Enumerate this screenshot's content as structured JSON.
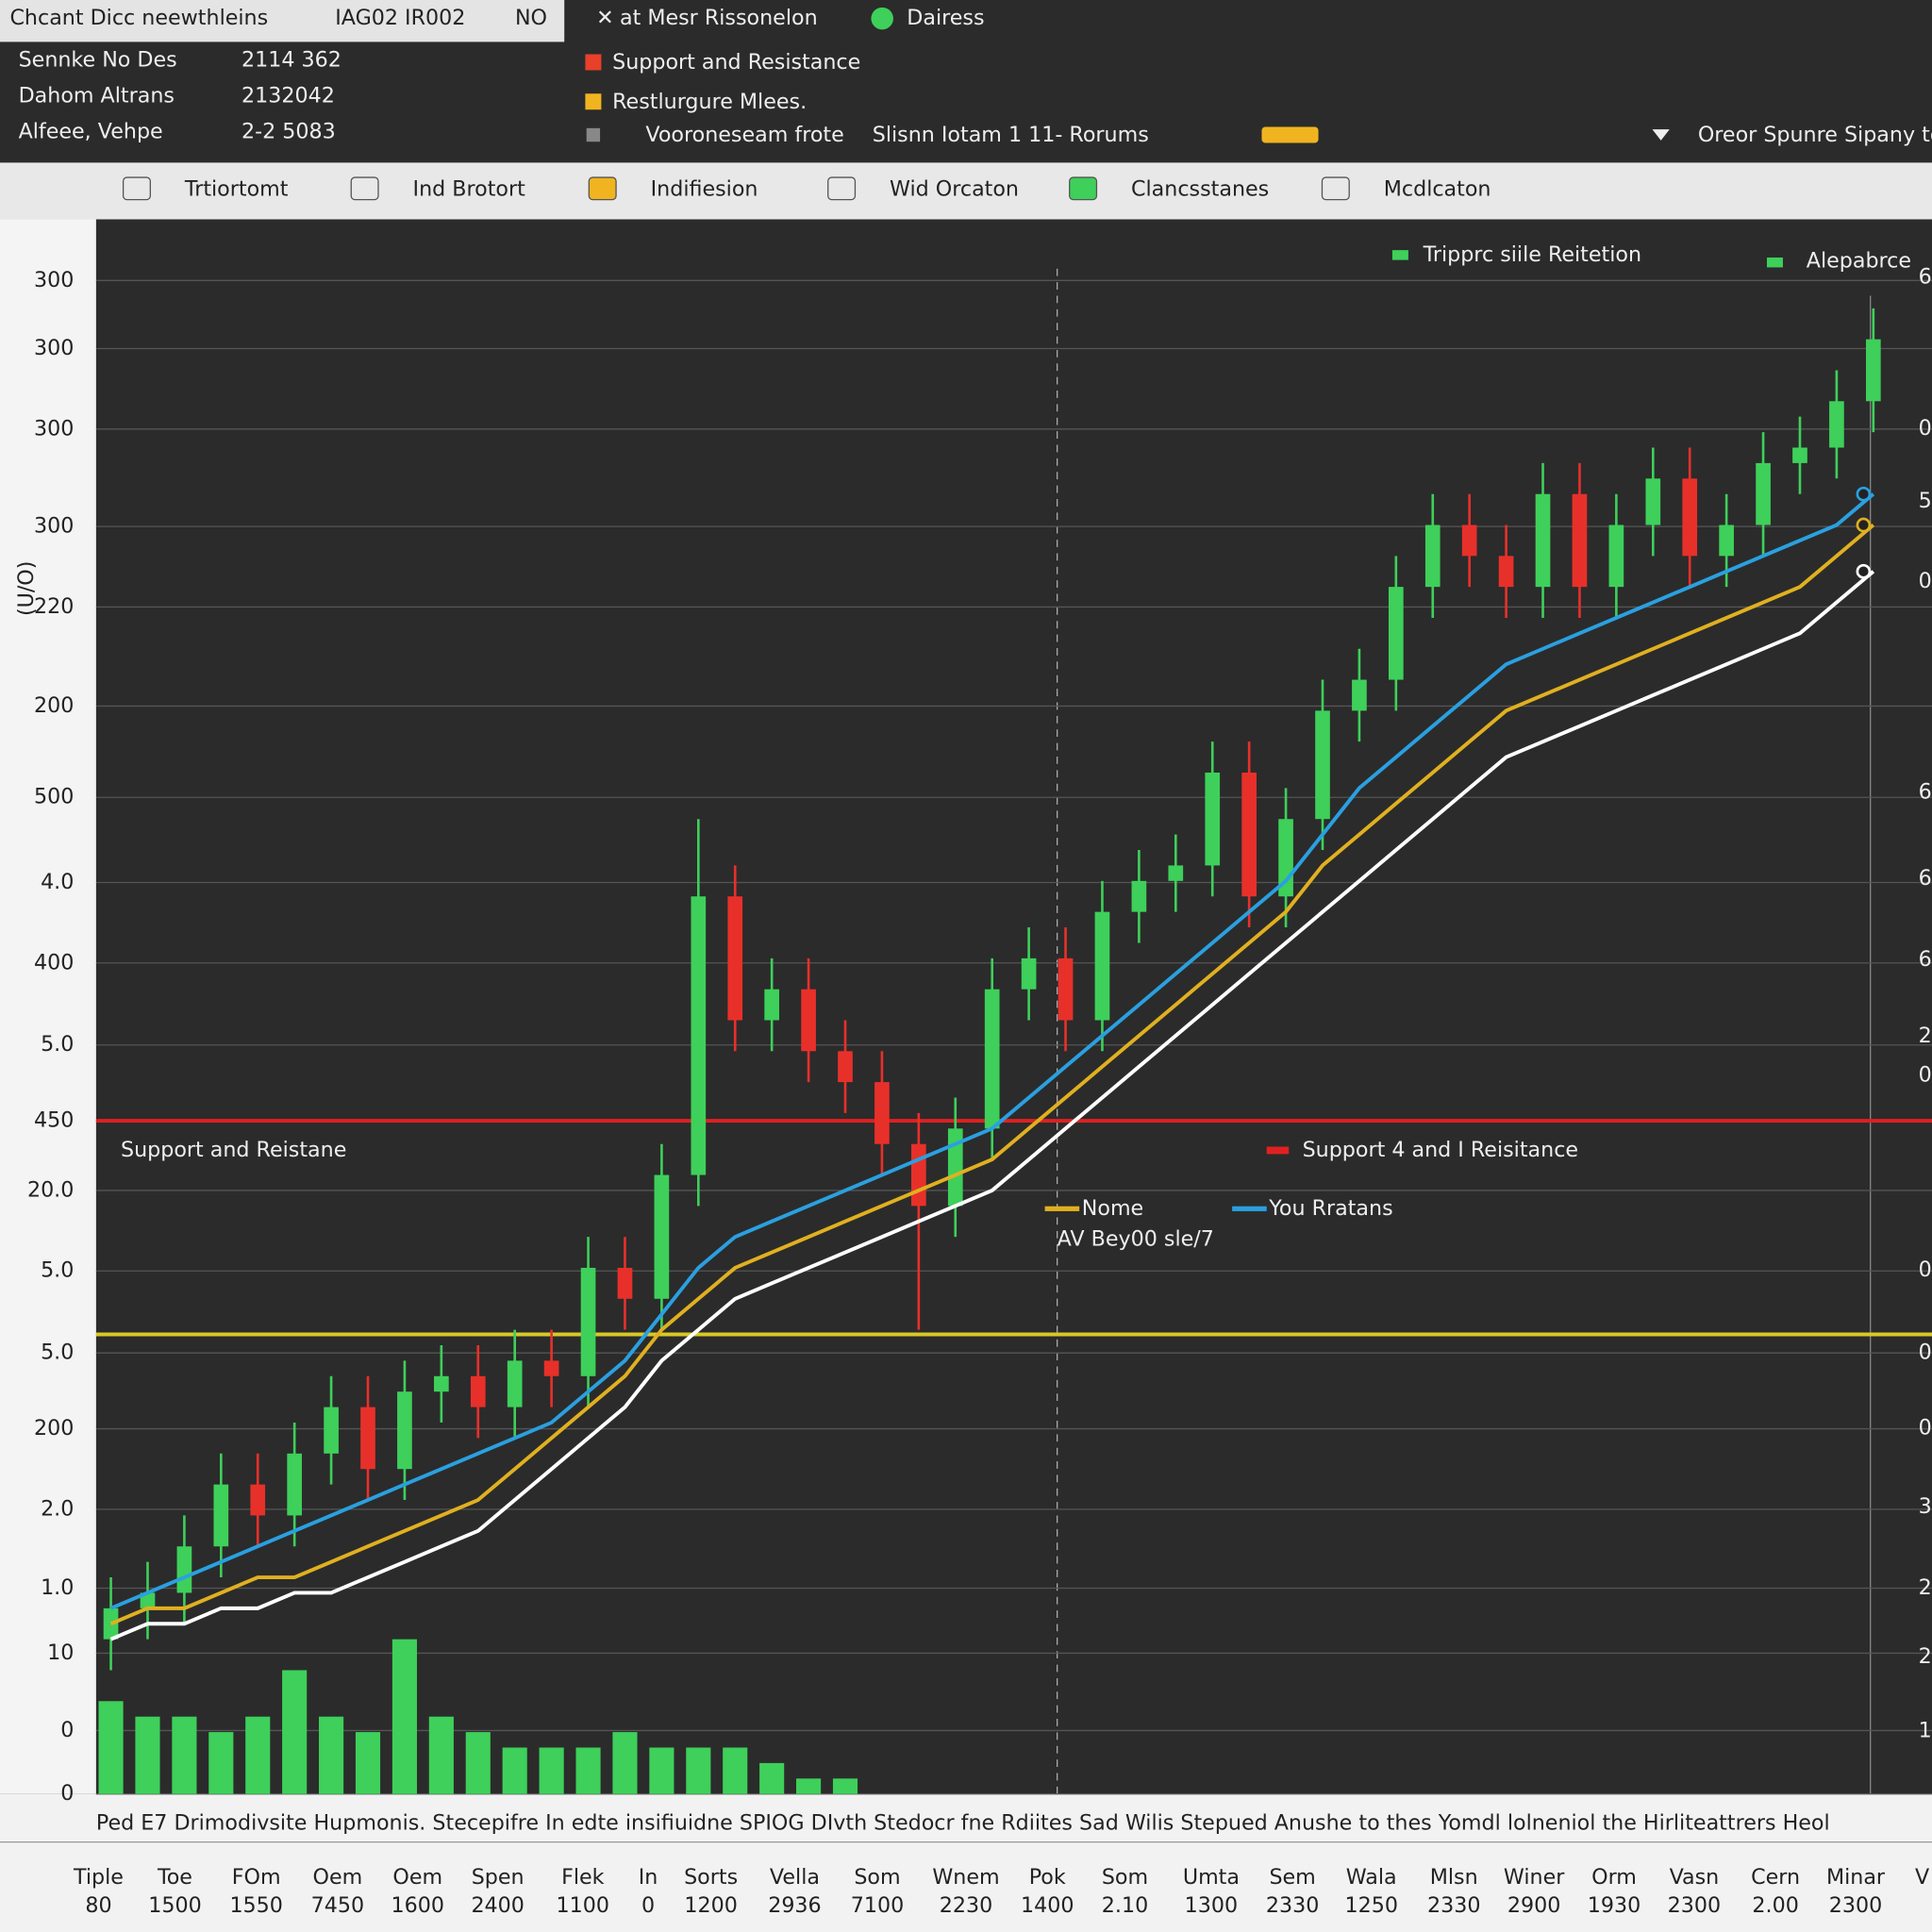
{
  "header": {
    "title": "Chcant Dicc neewthleins",
    "code": "IAG02 IR002",
    "flag": "NO",
    "rows": [
      [
        "Sennke No Des",
        "2114 362"
      ],
      [
        "Dahom Altrans",
        "2132042"
      ],
      [
        "Alfeee, Vehpe",
        "2-2 5083"
      ]
    ],
    "status": "at Mesr Rissonelon",
    "status2": "Dairess",
    "legend": [
      {
        "name": "Support and Resistance",
        "color": "#e8402a"
      },
      {
        "name": "Restlurgure Mlees.",
        "color": "#f0b420"
      }
    ],
    "sub_legend": "Vooroneseam frote",
    "sub_legend2": "Slisnn Iotam 1 11- Rorums",
    "dropdown": "Oreor Spunre Sipany to"
  },
  "toolbar": [
    "Trtiortomt",
    "Ind Brotort",
    "Indifiesion",
    "Wid Orcaton",
    "Clancsstanes",
    "Mcdlcaton"
  ],
  "chart_data": {
    "type": "candlestick",
    "axis_title": "(U/O)",
    "legend": [
      "Tripprc siile Reitetion",
      "Alepabrce"
    ],
    "ylim": [
      0,
      100
    ],
    "yticks": [
      {
        "value": 97.8,
        "label": "300"
      },
      {
        "value": 93.4,
        "label": "300"
      },
      {
        "value": 88.2,
        "label": "300"
      },
      {
        "value": 81.9,
        "label": "300"
      },
      {
        "value": 76.7,
        "label": "220"
      },
      {
        "value": 70.3,
        "label": "200"
      },
      {
        "value": 64.4,
        "label": "500"
      },
      {
        "value": 58.9,
        "label": "4.0"
      },
      {
        "value": 53.7,
        "label": "400"
      },
      {
        "value": 48.4,
        "label": "5.0"
      },
      {
        "value": 43.5,
        "label": "450"
      },
      {
        "value": 39.0,
        "label": "20.0"
      },
      {
        "value": 33.8,
        "label": "5.0"
      },
      {
        "value": 28.5,
        "label": "5.0"
      },
      {
        "value": 23.6,
        "label": "200"
      },
      {
        "value": 18.4,
        "label": "2.0"
      },
      {
        "value": 13.3,
        "label": "1.0"
      },
      {
        "value": 9.1,
        "label": "10"
      },
      {
        "value": 4.1,
        "label": "0"
      },
      0
    ],
    "right_labels": [
      "6",
      "0",
      "5",
      "0",
      "6",
      "6",
      "6",
      "2",
      "0",
      "0",
      "0",
      "0",
      "3",
      "2",
      "2",
      "1"
    ],
    "open": [
      10,
      12,
      13,
      16,
      20,
      18,
      22,
      25,
      21,
      26,
      27,
      25,
      28,
      27,
      34,
      32,
      40,
      58,
      50,
      52,
      48,
      46,
      42,
      38,
      43,
      52,
      54,
      50,
      57,
      59,
      60,
      66,
      58,
      63,
      70,
      72,
      78,
      82,
      80,
      78,
      84,
      78,
      82,
      85,
      80,
      82,
      86,
      87,
      90
    ],
    "close": [
      12,
      13,
      16,
      20,
      18,
      22,
      25,
      21,
      26,
      27,
      25,
      28,
      27,
      34,
      32,
      40,
      58,
      50,
      52,
      48,
      46,
      42,
      38,
      43,
      52,
      54,
      50,
      57,
      59,
      60,
      66,
      58,
      63,
      70,
      72,
      78,
      82,
      80,
      78,
      84,
      78,
      82,
      85,
      80,
      82,
      86,
      87,
      90,
      94
    ],
    "high": [
      14,
      15,
      18,
      22,
      22,
      24,
      27,
      27,
      28,
      29,
      29,
      30,
      30,
      36,
      36,
      42,
      63,
      60,
      54,
      54,
      50,
      48,
      44,
      45,
      54,
      56,
      56,
      59,
      61,
      62,
      68,
      68,
      65,
      72,
      74,
      80,
      84,
      84,
      82,
      86,
      86,
      84,
      87,
      87,
      84,
      88,
      89,
      92,
      96
    ],
    "low": [
      8,
      10,
      11,
      14,
      16,
      16,
      20,
      19,
      19,
      24,
      23,
      23,
      25,
      25,
      30,
      30,
      38,
      48,
      48,
      46,
      44,
      40,
      30,
      36,
      41,
      50,
      48,
      48,
      55,
      57,
      58,
      56,
      56,
      61,
      68,
      70,
      76,
      78,
      76,
      76,
      76,
      76,
      80,
      78,
      78,
      80,
      84,
      85,
      88
    ],
    "up_color": "#3ed05a",
    "down_color": "#e8302a",
    "volume": [
      6,
      5,
      5,
      4,
      5,
      8,
      5,
      4,
      10,
      5,
      4,
      3,
      3,
      3,
      4,
      3,
      3,
      3,
      2,
      1,
      1,
      0,
      0,
      0,
      0,
      0,
      0,
      0,
      0,
      0,
      0,
      0,
      0,
      0,
      0,
      0,
      0,
      0,
      0,
      0,
      0,
      0,
      0,
      0,
      0,
      0,
      0,
      0,
      0
    ],
    "series": [
      {
        "name": "You Rratans",
        "color": "#2aa0e0",
        "values": [
          12,
          13,
          14,
          15,
          16,
          17,
          18,
          19,
          20,
          21,
          22,
          23,
          24,
          26,
          28,
          31,
          34,
          36,
          37,
          38,
          39,
          40,
          41,
          42,
          43,
          45,
          47,
          49,
          51,
          53,
          55,
          57,
          59,
          62,
          65,
          67,
          69,
          71,
          73,
          74,
          75,
          76,
          77,
          78,
          79,
          80,
          81,
          82,
          84
        ]
      },
      {
        "name": "Nome",
        "color": "#e0b020",
        "values": [
          11,
          12,
          12,
          13,
          14,
          14,
          15,
          16,
          17,
          18,
          19,
          21,
          23,
          25,
          27,
          30,
          32,
          34,
          35,
          36,
          37,
          38,
          39,
          40,
          41,
          43,
          45,
          47,
          49,
          51,
          53,
          55,
          57,
          60,
          62,
          64,
          66,
          68,
          70,
          71,
          72,
          73,
          74,
          75,
          76,
          77,
          78,
          80,
          82
        ]
      },
      {
        "name": "AV Bey00 sle/7",
        "color": "#ffffff",
        "values": [
          10,
          11,
          11,
          12,
          12,
          13,
          13,
          14,
          15,
          16,
          17,
          19,
          21,
          23,
          25,
          28,
          30,
          32,
          33,
          34,
          35,
          36,
          37,
          38,
          39,
          41,
          43,
          45,
          47,
          49,
          51,
          53,
          55,
          57,
          59,
          61,
          63,
          65,
          67,
          68,
          69,
          70,
          71,
          72,
          73,
          74,
          75,
          77,
          79
        ]
      }
    ],
    "hlines": [
      {
        "value": 43.5,
        "color": "#e02020",
        "label": "Support and Reistane",
        "label2": "Support 4 and I Reisitance"
      },
      {
        "value": 29.7,
        "color": "#d8c828"
      }
    ]
  },
  "footer": {
    "note": "Ped E7 Drimodivsite Hupmonis. Stecepifre In edte insifiuidne SPIOG DIvth Stedocr fne Rdiites Sad Wilis Stepued Anushe to thes Yomdl lolneniol the Hirliteattrers Heol",
    "names": [
      "Tiple",
      "Toe",
      "FOm",
      "Oem",
      "Oem",
      "Spen",
      "Flek",
      "In",
      "Sorts",
      "Vella",
      "Som",
      "Wnem",
      "Pok",
      "Som",
      "Umta",
      "Sem",
      "Wala",
      "Mlsn",
      "Winer",
      "Orm",
      "Vasn",
      "Cern",
      "Minar",
      "V"
    ],
    "numbers": [
      "80",
      "1500",
      "1550",
      "7450",
      "1600",
      "2400",
      "1100",
      "0",
      "1200",
      "2936",
      "7100",
      "2230",
      "1400",
      "2.10",
      "1300",
      "2330",
      "1250",
      "2330",
      "2900",
      "1930",
      "2300",
      "2.00",
      "2300"
    ]
  }
}
